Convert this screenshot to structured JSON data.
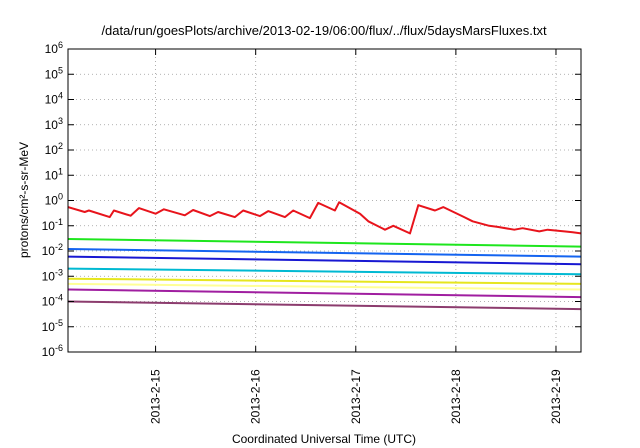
{
  "chart_data": {
    "type": "line",
    "title": "/data/run/goesPlots/archive/2013-02-19/06:00/flux/../flux/5daysMarsFluxes.txt",
    "xlabel": "Coordinated Universal Time (UTC)",
    "ylabel": "protons/cm²-s-sr-MeV",
    "y_scale": "log",
    "ylim_exp": [
      -6,
      6
    ],
    "y_ticks": [
      {
        "base": "10",
        "exp": "-6"
      },
      {
        "base": "10",
        "exp": "-5"
      },
      {
        "base": "10",
        "exp": "-4"
      },
      {
        "base": "10",
        "exp": "-3"
      },
      {
        "base": "10",
        "exp": "-2"
      },
      {
        "base": "10",
        "exp": "-1"
      },
      {
        "base": "10",
        "exp": "0"
      },
      {
        "base": "10",
        "exp": "1"
      },
      {
        "base": "10",
        "exp": "2"
      },
      {
        "base": "10",
        "exp": "3"
      },
      {
        "base": "10",
        "exp": "4"
      },
      {
        "base": "10",
        "exp": "5"
      },
      {
        "base": "10",
        "exp": "6"
      }
    ],
    "xlim": [
      "2013-02-14T03:00",
      "2013-02-19T06:00"
    ],
    "x_ticks": [
      "2013-2-15",
      "2013-2-16",
      "2013-2-17",
      "2013-2-18",
      "2013-2-19"
    ],
    "x_tick_dates": [
      "2013-02-15",
      "2013-02-16",
      "2013-02-17",
      "2013-02-18",
      "2013-02-19"
    ],
    "grid": true,
    "legend": "none",
    "series": [
      {
        "color": "#e8141c",
        "x": [
          "2013-02-14T03:00",
          "2013-02-14T07:00",
          "2013-02-14T08:00",
          "2013-02-14T13:00",
          "2013-02-14T14:00",
          "2013-02-14T18:00",
          "2013-02-14T20:00",
          "2013-02-15T00:00",
          "2013-02-15T02:00",
          "2013-02-15T07:00",
          "2013-02-15T09:00",
          "2013-02-15T13:00",
          "2013-02-15T15:00",
          "2013-02-15T19:00",
          "2013-02-15T21:00",
          "2013-02-16T01:00",
          "2013-02-16T03:00",
          "2013-02-16T07:00",
          "2013-02-16T09:00",
          "2013-02-16T13:00",
          "2013-02-16T15:00",
          "2013-02-16T19:00",
          "2013-02-16T20:00",
          "2013-02-17T01:00",
          "2013-02-17T03:00",
          "2013-02-17T07:00",
          "2013-02-17T09:00",
          "2013-02-17T13:00",
          "2013-02-17T15:00",
          "2013-02-17T19:00",
          "2013-02-17T21:00",
          "2013-02-18T02:00",
          "2013-02-18T04:00",
          "2013-02-18T08:00",
          "2013-02-18T10:00",
          "2013-02-18T14:00",
          "2013-02-18T16:00",
          "2013-02-18T20:00",
          "2013-02-18T22:00",
          "2013-02-19T02:00",
          "2013-02-19T04:00",
          "2013-02-19T06:00"
        ],
        "y": [
          0.55,
          0.35,
          0.4,
          0.22,
          0.4,
          0.25,
          0.5,
          0.3,
          0.45,
          0.26,
          0.42,
          0.24,
          0.35,
          0.22,
          0.4,
          0.24,
          0.38,
          0.22,
          0.4,
          0.2,
          0.8,
          0.4,
          0.85,
          0.3,
          0.15,
          0.07,
          0.1,
          0.05,
          0.65,
          0.4,
          0.55,
          0.22,
          0.15,
          0.1,
          0.09,
          0.07,
          0.08,
          0.06,
          0.07,
          0.06,
          0.055,
          0.05
        ]
      },
      {
        "color": "#1ee61e",
        "x": [
          "2013-02-14T03:00",
          "2013-02-19T06:00"
        ],
        "y": [
          0.03,
          0.015
        ]
      },
      {
        "color": "#1464f0",
        "x": [
          "2013-02-14T03:00",
          "2013-02-19T06:00"
        ],
        "y": [
          0.012,
          0.006
        ]
      },
      {
        "color": "#1818d2",
        "x": [
          "2013-02-14T03:00",
          "2013-02-19T06:00"
        ],
        "y": [
          0.006,
          0.003
        ]
      },
      {
        "color": "#00b9d2",
        "x": [
          "2013-02-14T03:00",
          "2013-02-19T06:00"
        ],
        "y": [
          0.002,
          0.0012
        ]
      },
      {
        "color": "#e6e61e",
        "x": [
          "2013-02-14T03:00",
          "2013-02-19T06:00"
        ],
        "y": [
          0.0008,
          0.0005
        ]
      },
      {
        "color": "#ffff96",
        "x": [
          "2013-02-14T03:00",
          "2013-02-19T06:00"
        ],
        "y": [
          0.0005,
          0.0003
        ]
      },
      {
        "color": "#a01ea0",
        "x": [
          "2013-02-14T03:00",
          "2013-02-19T06:00"
        ],
        "y": [
          0.0003,
          0.00015
        ]
      },
      {
        "color": "#8c3c6e",
        "x": [
          "2013-02-14T03:00",
          "2013-02-19T06:00"
        ],
        "y": [
          0.0001,
          5e-05
        ]
      }
    ]
  }
}
